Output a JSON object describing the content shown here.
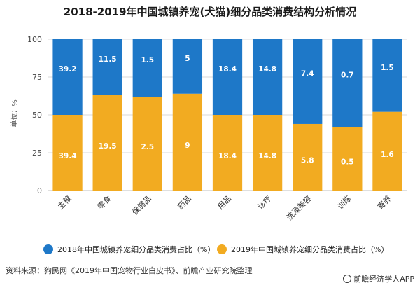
{
  "chart_data": {
    "type": "bar",
    "stacked": true,
    "title": "2018-2019年中国城镇养宠(犬猫)细分品类消费结构分析情况",
    "ylabel": "单位：%",
    "ylim": [
      0,
      100
    ],
    "yticks": [
      0,
      25,
      50,
      75,
      100
    ],
    "categories": [
      "主粮",
      "零食",
      "保健品",
      "药品",
      "用品",
      "诊疗",
      "洗澡美容",
      "训练",
      "寄养"
    ],
    "series": [
      {
        "name": "2019年中国城镇养宠细分品类消费占比（%）",
        "color": "#f2ab21",
        "position": "bottom",
        "labels": [
          "39.4",
          "19.5",
          "2.5",
          "9",
          "18.4",
          "14.8",
          "5.8",
          "0.5",
          "1.6"
        ],
        "values": [
          50,
          63,
          62,
          64,
          50,
          50,
          44,
          42,
          52
        ]
      },
      {
        "name": "2018年中国城镇养宠细分品类消费占比（%）",
        "color": "#1e78c8",
        "position": "top",
        "labels": [
          "39.2",
          "11.5",
          "1.5",
          "5",
          "18.4",
          "14.8",
          "7.4",
          "0.7",
          "1.5"
        ],
        "values": [
          50,
          37,
          38,
          36,
          50,
          50,
          56,
          58,
          48
        ]
      }
    ],
    "legend": [
      {
        "label": "2018年中国城镇养宠细分品类消费占比（%）",
        "color": "#1e78c8"
      },
      {
        "label": "2019年中国城镇养宠细分品类消费占比（%）",
        "color": "#f2ab21"
      }
    ],
    "legend_position": "bottom"
  },
  "footer": {
    "source": "资料来源：狗民网《2019年中国宠物行业白皮书》、前瞻产业研究院整理",
    "brand": "前瞻经济学人APP"
  }
}
